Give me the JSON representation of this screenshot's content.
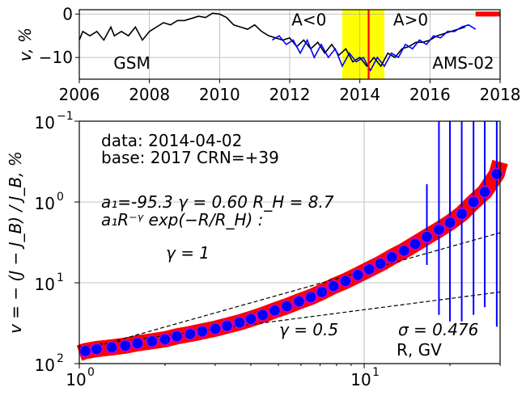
{
  "chart_data": [
    {
      "type": "line",
      "xlabel": "",
      "ylabel": "v, %",
      "xlim": [
        2006,
        2018
      ],
      "ylim": [
        -15,
        1
      ],
      "x_ticks": [
        "2006",
        "2008",
        "2010",
        "2012",
        "2014",
        "2016",
        "2018"
      ],
      "y_ticks": [
        "0",
        "−10"
      ],
      "grid": true,
      "shaded_band": {
        "from": 2013.5,
        "to": 2014.7,
        "color": "#ffff00"
      },
      "marker_line": {
        "x": 2014.25,
        "color": "#ff0000"
      },
      "marker_bar": {
        "from": 2017.3,
        "to": 2018,
        "y": 0,
        "color": "#ff0000"
      },
      "annotations": [
        {
          "text": "A<0",
          "x": 2012.55,
          "y": -1.5
        },
        {
          "text": "A>0",
          "x": 2015.45,
          "y": -1.5
        },
        {
          "text": "GSM",
          "x": 2007.5,
          "y": -11.5
        },
        {
          "text": "AMS-02",
          "x": 2016.95,
          "y": -11.5
        }
      ],
      "series": [
        {
          "name": "GSM",
          "color": "#000000",
          "x": [
            2006.0,
            2006.1,
            2006.3,
            2006.5,
            2006.7,
            2006.9,
            2007.0,
            2007.2,
            2007.4,
            2007.6,
            2007.8,
            2008.0,
            2008.2,
            2008.4,
            2008.6,
            2008.8,
            2009.0,
            2009.2,
            2009.4,
            2009.6,
            2009.8,
            2010.0,
            2010.2,
            2010.4,
            2010.6,
            2010.8,
            2011.0,
            2011.2,
            2011.4,
            2011.6,
            2011.8,
            2012.0,
            2012.2,
            2012.4,
            2012.6,
            2012.8,
            2013.0,
            2013.2,
            2013.4,
            2013.6,
            2013.8,
            2014.0,
            2014.2,
            2014.4,
            2014.6,
            2014.8,
            2015.0,
            2015.2,
            2015.4,
            2015.6,
            2015.8,
            2016.0,
            2016.2,
            2016.4,
            2016.6,
            2016.8,
            2017.0
          ],
          "values": [
            -6,
            -4,
            -5,
            -4,
            -6,
            -3,
            -5,
            -4,
            -5,
            -3,
            -6,
            -4,
            -3,
            -2,
            -2.5,
            -1.5,
            -1.5,
            -1,
            -0.5,
            -0.8,
            0.2,
            0,
            -0.8,
            -2.5,
            -3,
            -3.5,
            -2.5,
            -4,
            -5,
            -5.5,
            -6,
            -5.5,
            -7.5,
            -6,
            -8,
            -6.5,
            -9,
            -7,
            -9.5,
            -8,
            -11,
            -10,
            -12,
            -10,
            -12,
            -9,
            -10,
            -8,
            -7.5,
            -6.5,
            -6.5,
            -6,
            -5,
            -4.5,
            -4,
            -3.5,
            -3
          ]
        },
        {
          "name": "AMS-02",
          "color": "#0000ff",
          "x": [
            2011.5,
            2011.7,
            2011.9,
            2012.1,
            2012.3,
            2012.5,
            2012.7,
            2012.9,
            2013.1,
            2013.3,
            2013.5,
            2013.7,
            2013.9,
            2014.1,
            2014.3,
            2014.5,
            2014.7,
            2014.9,
            2015.1,
            2015.3,
            2015.5,
            2015.7,
            2015.9,
            2016.1,
            2016.3,
            2016.5,
            2016.7,
            2016.9,
            2017.1,
            2017.3
          ],
          "values": [
            -6,
            -5,
            -7,
            -6,
            -9,
            -6,
            -10,
            -7,
            -10,
            -8,
            -12,
            -9,
            -11,
            -10,
            -13,
            -10,
            -12,
            -9,
            -10,
            -7,
            -8,
            -6,
            -7,
            -5,
            -5.5,
            -4,
            -4,
            -3,
            -2.5,
            -3.5
          ]
        }
      ]
    },
    {
      "type": "scatter",
      "xlabel": "R, GV",
      "ylabel": "v = − (J − J_B) / J_B, %",
      "x_scale": "log",
      "y_scale": "log",
      "y_inverted": true,
      "xlim": [
        1,
        30
      ],
      "ylim": [
        0.1,
        100
      ],
      "x_ticks": [
        {
          "value": 1,
          "base": "10",
          "exp": "0"
        },
        {
          "value": 10,
          "base": "10",
          "exp": "1"
        }
      ],
      "y_ticks": [
        {
          "value": 0.1,
          "base": "10",
          "exp": "−1"
        },
        {
          "value": 1,
          "base": "10",
          "exp": "0"
        },
        {
          "value": 10,
          "base": "10",
          "exp": "1"
        },
        {
          "value": 100,
          "base": "10",
          "exp": "2"
        }
      ],
      "grid": true,
      "annotations": [
        {
          "text": "data: 2014-04-02"
        },
        {
          "text": "base: 2017   CRN=+39"
        },
        {
          "text": "a₁=-95.3  γ = 0.60  R_H =  8.7"
        },
        {
          "text": "a₁R⁻ᵞ exp(−R/R_H) :"
        },
        {
          "text": "γ = 1"
        },
        {
          "text": "γ = 0.5"
        },
        {
          "text": "σ = 0.476"
        }
      ],
      "fit_band_color": "#ff0000",
      "marker_color": "#0000ff",
      "marker_edge": "#cc00cc",
      "errorbar_color": "#0000ff",
      "points": [
        {
          "x": 1.05,
          "y": 70
        },
        {
          "x": 1.15,
          "y": 66
        },
        {
          "x": 1.3,
          "y": 63
        },
        {
          "x": 1.45,
          "y": 60
        },
        {
          "x": 1.6,
          "y": 56
        },
        {
          "x": 1.8,
          "y": 53
        },
        {
          "x": 2.0,
          "y": 50
        },
        {
          "x": 2.2,
          "y": 46
        },
        {
          "x": 2.45,
          "y": 43
        },
        {
          "x": 2.7,
          "y": 40
        },
        {
          "x": 3.0,
          "y": 37
        },
        {
          "x": 3.3,
          "y": 34
        },
        {
          "x": 3.65,
          "y": 31
        },
        {
          "x": 4.0,
          "y": 28
        },
        {
          "x": 4.4,
          "y": 25
        },
        {
          "x": 4.85,
          "y": 22
        },
        {
          "x": 5.35,
          "y": 19.5
        },
        {
          "x": 5.9,
          "y": 17
        },
        {
          "x": 6.5,
          "y": 15
        },
        {
          "x": 7.1,
          "y": 13
        },
        {
          "x": 7.8,
          "y": 11
        },
        {
          "x": 8.6,
          "y": 9.5
        },
        {
          "x": 9.5,
          "y": 8
        },
        {
          "x": 10.4,
          "y": 6.8
        },
        {
          "x": 11.4,
          "y": 5.8
        },
        {
          "x": 12.5,
          "y": 4.8
        },
        {
          "x": 13.8,
          "y": 4.0
        },
        {
          "x": 15.1,
          "y": 3.3
        },
        {
          "x": 16.6,
          "y": 2.7,
          "err": [
            0.6,
            6
          ]
        },
        {
          "x": 18.3,
          "y": 2.2,
          "err": [
            0.1,
            25
          ]
        },
        {
          "x": 20.0,
          "y": 1.8,
          "err": [
            0.1,
            30
          ]
        },
        {
          "x": 22.0,
          "y": 1.4,
          "err": [
            0.1,
            30
          ]
        },
        {
          "x": 24.2,
          "y": 1.0,
          "err": [
            0.1,
            25
          ]
        },
        {
          "x": 26.5,
          "y": 0.75,
          "err": [
            0.1,
            20
          ]
        },
        {
          "x": 29.2,
          "y": 0.45,
          "err": [
            0.1,
            35
          ]
        }
      ],
      "lines": [
        {
          "name": "γ = 1",
          "style": "dashed",
          "x": [
            1,
            30
          ],
          "y": [
            70,
            2.4
          ]
        },
        {
          "name": "γ = 0.5",
          "style": "dashed",
          "x": [
            1,
            30
          ],
          "y": [
            62,
            13
          ]
        }
      ]
    }
  ]
}
